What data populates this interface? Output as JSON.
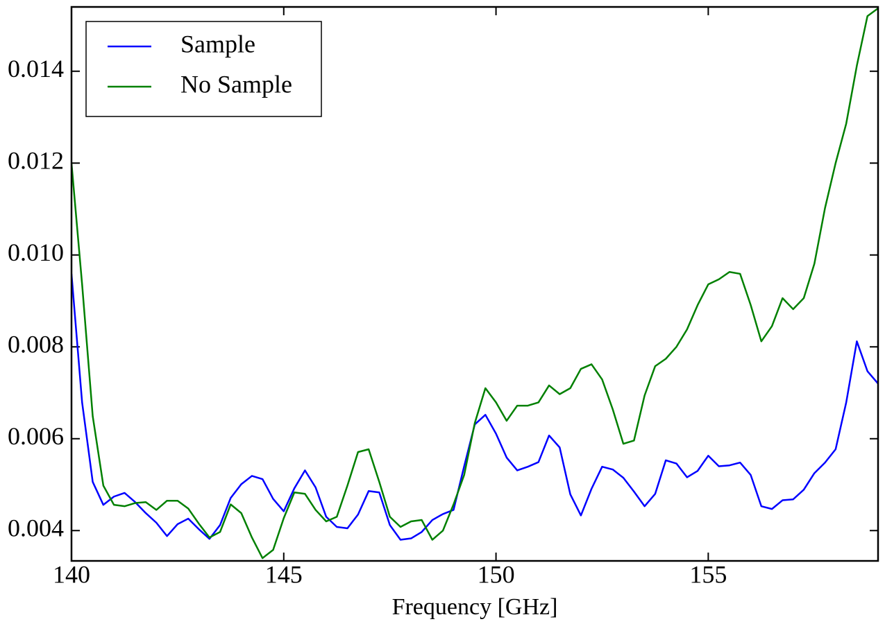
{
  "chart_data": {
    "type": "line",
    "x_label": "Frequency [GHz]",
    "x": [
      140,
      140.25,
      140.5,
      140.75,
      141,
      141.25,
      141.5,
      141.75,
      142,
      142.25,
      142.5,
      142.75,
      143,
      143.25,
      143.5,
      143.75,
      144,
      144.25,
      144.5,
      144.75,
      145,
      145.25,
      145.5,
      145.75,
      146,
      146.25,
      146.5,
      146.75,
      147,
      147.25,
      147.5,
      147.75,
      148,
      148.25,
      148.5,
      148.75,
      149,
      149.25,
      149.5,
      149.75,
      150,
      150.25,
      150.5,
      150.75,
      151,
      151.25,
      151.5,
      151.75,
      152,
      152.25,
      152.5,
      152.75,
      153,
      153.25,
      153.5,
      153.75,
      154,
      154.25,
      154.5,
      154.75,
      155,
      155.25,
      155.5,
      155.75,
      156,
      156.25,
      156.5,
      156.75,
      157,
      157.25,
      157.5,
      157.75,
      158,
      158.25,
      158.5,
      158.75,
      159
    ],
    "series": [
      {
        "name": "Sample",
        "color": "#0000ff",
        "values": [
          0.00959,
          0.00679,
          0.00506,
          0.00456,
          0.00474,
          0.00482,
          0.00462,
          0.00438,
          0.00417,
          0.00388,
          0.00414,
          0.00426,
          0.00403,
          0.00382,
          0.00412,
          0.00471,
          0.00501,
          0.00519,
          0.00512,
          0.00469,
          0.00442,
          0.00492,
          0.00531,
          0.00494,
          0.0043,
          0.00408,
          0.00405,
          0.00435,
          0.00486,
          0.00483,
          0.00412,
          0.0038,
          0.00383,
          0.00397,
          0.00423,
          0.00436,
          0.00445,
          0.0054,
          0.00631,
          0.00652,
          0.00611,
          0.00559,
          0.00531,
          0.00539,
          0.00549,
          0.00607,
          0.00581,
          0.00479,
          0.00433,
          0.00491,
          0.00539,
          0.00533,
          0.00515,
          0.00485,
          0.00453,
          0.0048,
          0.00553,
          0.00546,
          0.00516,
          0.0053,
          0.00563,
          0.0054,
          0.00542,
          0.00548,
          0.00521,
          0.00453,
          0.00447,
          0.00466,
          0.00468,
          0.00489,
          0.00525,
          0.00548,
          0.00577,
          0.00679,
          0.00812,
          0.00747,
          0.0072
        ]
      },
      {
        "name": "No Sample",
        "color": "#008000",
        "values": [
          0.012,
          0.00936,
          0.00649,
          0.00498,
          0.00456,
          0.00453,
          0.0046,
          0.00462,
          0.00445,
          0.00465,
          0.00465,
          0.00448,
          0.00415,
          0.00385,
          0.00397,
          0.00457,
          0.00438,
          0.00385,
          0.0034,
          0.00358,
          0.00427,
          0.00483,
          0.0048,
          0.00445,
          0.0042,
          0.0043,
          0.00498,
          0.00571,
          0.00577,
          0.00506,
          0.0043,
          0.00408,
          0.0042,
          0.00423,
          0.0038,
          0.004,
          0.00457,
          0.00521,
          0.00634,
          0.0071,
          0.00679,
          0.00639,
          0.00672,
          0.00672,
          0.00679,
          0.00716,
          0.00697,
          0.0071,
          0.00752,
          0.00762,
          0.00729,
          0.00664,
          0.00589,
          0.00596,
          0.00694,
          0.00758,
          0.00774,
          0.008,
          0.00838,
          0.00891,
          0.00936,
          0.00947,
          0.00963,
          0.00959,
          0.00891,
          0.00812,
          0.00845,
          0.00906,
          0.00882,
          0.00906,
          0.00981,
          0.01102,
          0.012,
          0.01286,
          0.01412,
          0.0152,
          0.01537
        ]
      }
    ],
    "xlim": [
      140,
      159
    ],
    "ylim": [
      0.00334,
      0.0154
    ],
    "xticks": [
      140,
      145,
      150,
      155
    ],
    "yticks": [
      0.004,
      0.006,
      0.008,
      {
        "value": 0.01,
        "label": "0.010"
      },
      0.012,
      0.014
    ],
    "grid": false,
    "legend": "upper-left"
  }
}
